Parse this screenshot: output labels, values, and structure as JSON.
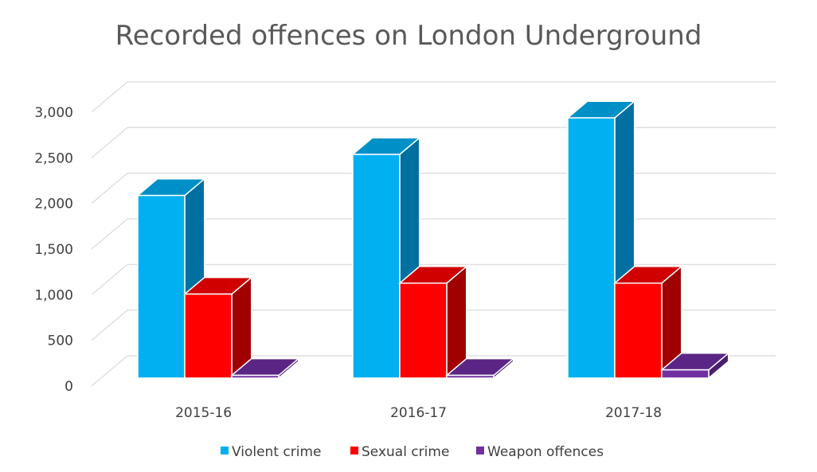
{
  "chart_data": {
    "type": "bar",
    "title": "Recorded offences on London Underground",
    "categories": [
      "2015-16",
      "2016-17",
      "2017-18"
    ],
    "series": [
      {
        "name": "Violent crime",
        "values": [
          2000,
          2450,
          2850
        ],
        "color": "#00b0f0",
        "side_color": "#0070a0",
        "top_color": "#0090c8"
      },
      {
        "name": "Sexual crime",
        "values": [
          920,
          1040,
          1040
        ],
        "color": "#ff0000",
        "side_color": "#a00000",
        "top_color": "#d00000"
      },
      {
        "name": "Weapon offences",
        "values": [
          30,
          30,
          90
        ],
        "color": "#7030a0",
        "side_color": "#4a1f70",
        "top_color": "#5a2585"
      }
    ],
    "y_ticks": [
      "0",
      "500",
      "1,000",
      "1,500",
      "2,000",
      "2,500",
      "3,000"
    ],
    "ylim": [
      0,
      3000
    ],
    "grid": true,
    "legend_position": "bottom"
  }
}
